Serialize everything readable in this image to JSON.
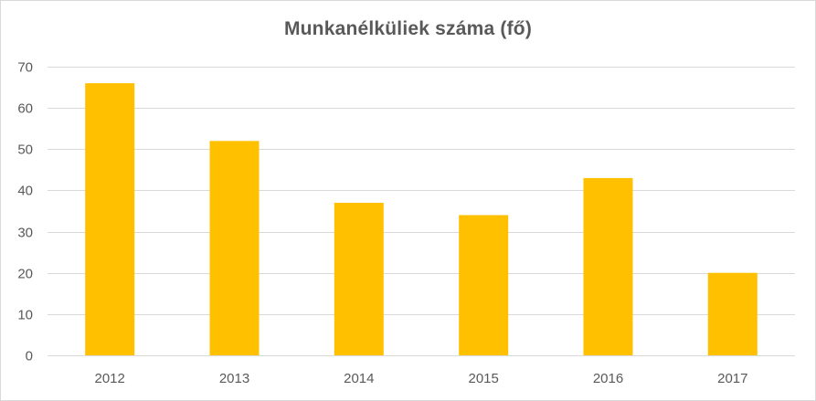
{
  "chart_data": {
    "type": "bar",
    "title": "Munkanélküliek száma (fő)",
    "categories": [
      "2012",
      "2013",
      "2014",
      "2015",
      "2016",
      "2017"
    ],
    "values": [
      66,
      52,
      37,
      34,
      43,
      20
    ],
    "ylim": [
      0,
      70
    ],
    "yticks": [
      "0",
      "10",
      "20",
      "30",
      "40",
      "50",
      "60",
      "70"
    ],
    "xlabel": "",
    "ylabel": "",
    "grid": true,
    "legend": "none",
    "colors": {
      "bar": "#FFC000",
      "grid": "#d9d9d9",
      "text": "#595959"
    }
  }
}
